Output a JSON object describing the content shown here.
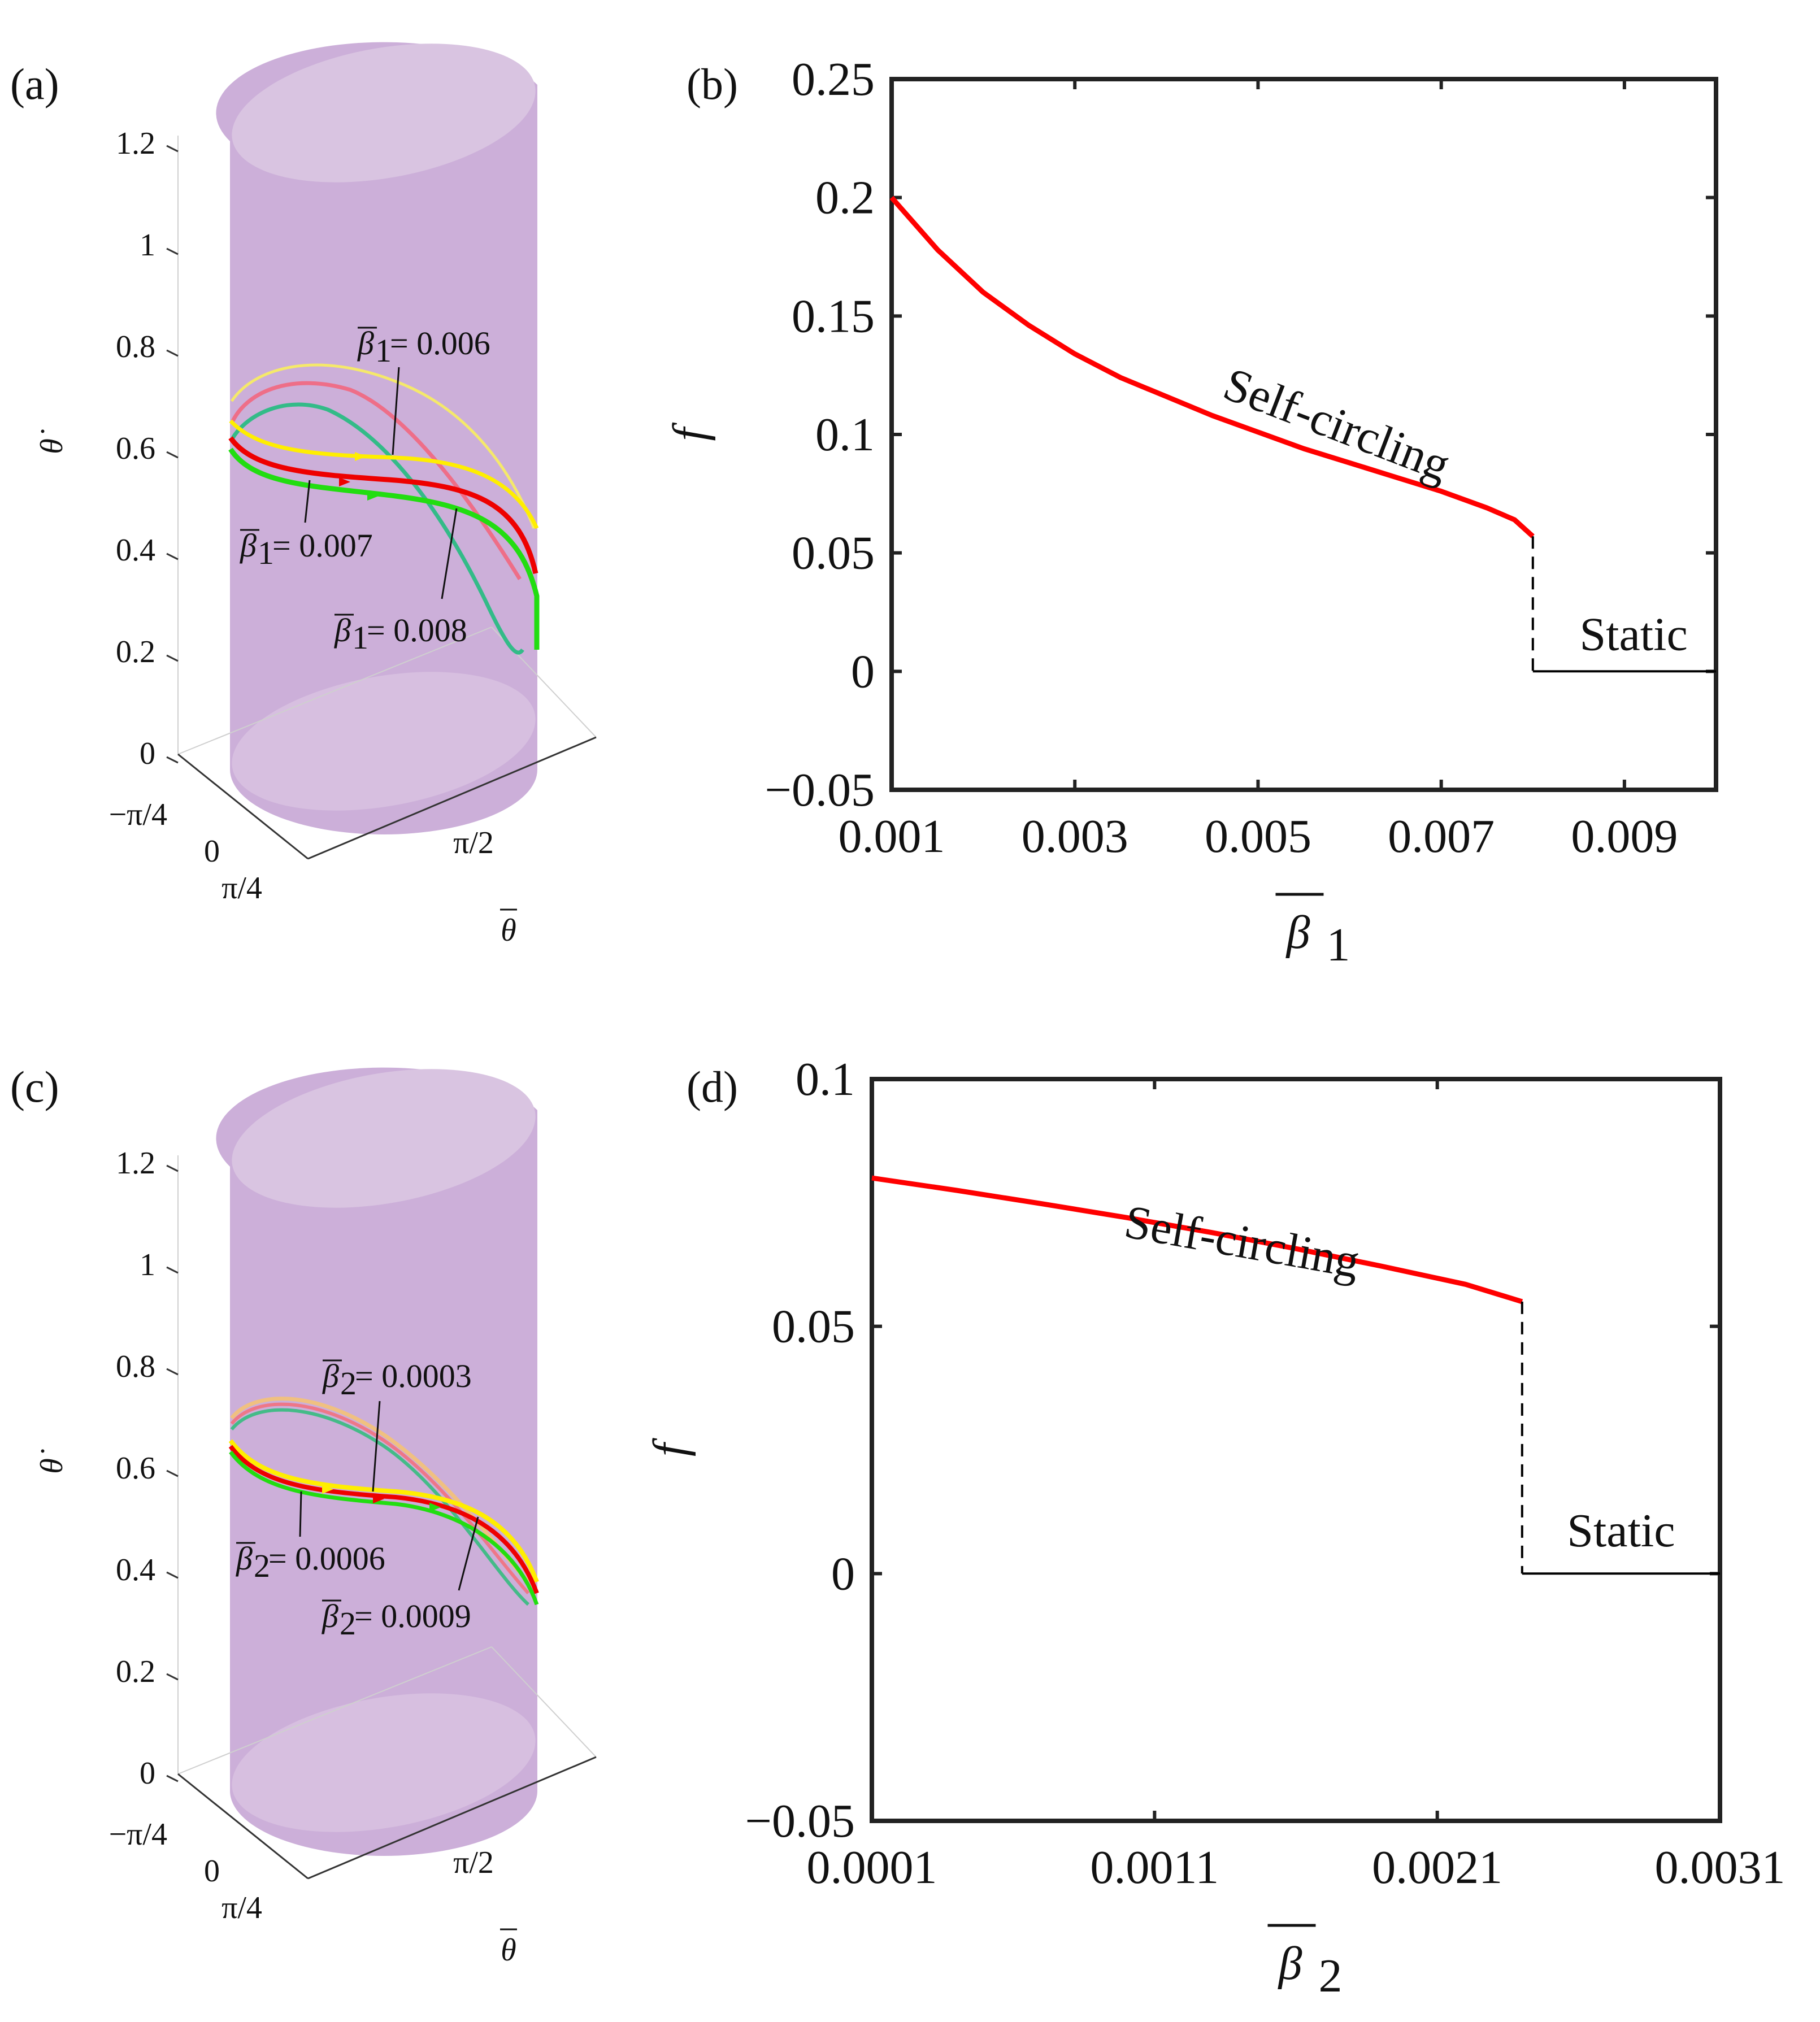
{
  "panels": {
    "a": {
      "label": "(a)",
      "zticks": [
        "0",
        "0.2",
        "0.4",
        "0.6",
        "0.8",
        "1",
        "1.2"
      ],
      "yticks": [
        "−π/4",
        "0",
        "π/4"
      ],
      "xticks": [
        "π/2"
      ],
      "xlabel": "θ",
      "zlabel": "θ̇",
      "curves": [
        {
          "name": "beta1-0.006",
          "label": "= 0.006",
          "symbol": "β",
          "sub": "1",
          "color": "#ffee00"
        },
        {
          "name": "beta1-0.007",
          "label": "= 0.007",
          "symbol": "β",
          "sub": "1",
          "color": "#ee0000"
        },
        {
          "name": "beta1-0.008",
          "label": "= 0.008",
          "symbol": "β",
          "sub": "1",
          "color": "#22dd11"
        }
      ]
    },
    "c": {
      "label": "(c)",
      "zticks": [
        "0",
        "0.2",
        "0.4",
        "0.6",
        "0.8",
        "1",
        "1.2"
      ],
      "yticks": [
        "−π/4",
        "0",
        "π/4"
      ],
      "xticks": [
        "π/2"
      ],
      "xlabel": "θ",
      "zlabel": "θ̇",
      "curves": [
        {
          "name": "beta2-0.0003",
          "label": "= 0.0003",
          "symbol": "β",
          "sub": "2",
          "color": "#ffee00"
        },
        {
          "name": "beta2-0.0006",
          "label": "= 0.0006",
          "symbol": "β",
          "sub": "2",
          "color": "#ee0000"
        },
        {
          "name": "beta2-0.0009",
          "label": "= 0.0009",
          "symbol": "β",
          "sub": "2",
          "color": "#22dd11"
        }
      ]
    }
  },
  "chart_data": [
    {
      "panel": "b",
      "label": "(b)",
      "type": "line",
      "xlabel_symbol": "β",
      "xlabel_sub": "1",
      "ylabel": "f",
      "xlim": [
        0.001,
        0.01
      ],
      "ylim": [
        -0.05,
        0.25
      ],
      "xticks": [
        0.001,
        0.003,
        0.005,
        0.007,
        0.009
      ],
      "xtick_labels": [
        "0.001",
        "0.003",
        "0.005",
        "0.007",
        "0.009"
      ],
      "yticks": [
        -0.05,
        0,
        0.05,
        0.1,
        0.15,
        0.2,
        0.25
      ],
      "ytick_labels": [
        "−0.05",
        "0",
        "0.05",
        "0.1",
        "0.15",
        "0.2",
        "0.25"
      ],
      "series": [
        {
          "name": "Self-circling",
          "color": "#ff0000",
          "x": [
            0.001,
            0.0015,
            0.002,
            0.0025,
            0.003,
            0.0035,
            0.004,
            0.0045,
            0.005,
            0.0055,
            0.006,
            0.0065,
            0.007,
            0.0075,
            0.0078,
            0.008
          ],
          "y": [
            0.2,
            0.178,
            0.16,
            0.146,
            0.134,
            0.124,
            0.116,
            0.108,
            0.101,
            0.094,
            0.088,
            0.082,
            0.076,
            0.069,
            0.064,
            0.057
          ]
        },
        {
          "name": "jump",
          "color": "#000000",
          "dash": true,
          "x": [
            0.008,
            0.008
          ],
          "y": [
            0.057,
            0
          ]
        },
        {
          "name": "Static",
          "color": "#000000",
          "x": [
            0.008,
            0.01
          ],
          "y": [
            0,
            0
          ]
        }
      ],
      "annotations": [
        {
          "text": "Self-circling",
          "x": 0.0058,
          "y": 0.098,
          "rotate": 21
        },
        {
          "text": "Static",
          "x": 0.0091,
          "y": 0.009,
          "rotate": 0
        }
      ]
    },
    {
      "panel": "d",
      "label": "(d)",
      "type": "line",
      "xlabel_symbol": "β",
      "xlabel_sub": "2",
      "ylabel": "f",
      "xlim": [
        0.0001,
        0.0031
      ],
      "ylim": [
        -0.05,
        0.1
      ],
      "xticks": [
        0.0001,
        0.0011,
        0.0021,
        0.0031
      ],
      "xtick_labels": [
        "0.0001",
        "0.0011",
        "0.0021",
        "0.0031"
      ],
      "yticks": [
        -0.05,
        0,
        0.05,
        0.1
      ],
      "ytick_labels": [
        "−0.05",
        "0",
        "0.05",
        "0.1"
      ],
      "series": [
        {
          "name": "Self-circling",
          "color": "#ff0000",
          "x": [
            0.0001,
            0.0004,
            0.0007,
            0.001,
            0.0013,
            0.0016,
            0.0019,
            0.0022,
            0.0024
          ],
          "y": [
            0.08,
            0.0775,
            0.0748,
            0.072,
            0.069,
            0.0657,
            0.0622,
            0.0585,
            0.055
          ]
        },
        {
          "name": "jump",
          "color": "#000000",
          "dash": true,
          "x": [
            0.0024,
            0.0024
          ],
          "y": [
            0.055,
            0
          ]
        },
        {
          "name": "Static",
          "color": "#000000",
          "x": [
            0.0024,
            0.0031
          ],
          "y": [
            0,
            0
          ]
        }
      ],
      "annotations": [
        {
          "text": "Self-circling",
          "x": 0.0014,
          "y": 0.064,
          "rotate": 10
        },
        {
          "text": "Static",
          "x": 0.00275,
          "y": 0.0055,
          "rotate": 0
        }
      ]
    }
  ]
}
